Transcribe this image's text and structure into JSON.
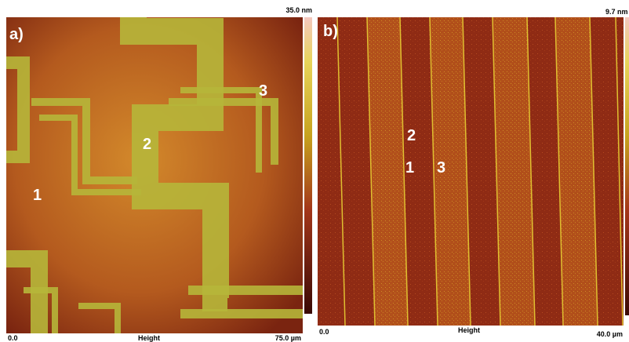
{
  "panels": [
    {
      "label": "a)",
      "scale_max": "35.0 nm",
      "axis_start": "0.0",
      "axis_title": "Height",
      "axis_end": "75.0 µm",
      "markers": [
        "1",
        "2",
        "3"
      ]
    },
    {
      "label": "b)",
      "scale_max": "9.7 nm",
      "axis_start": "0.0",
      "axis_title": "Height",
      "axis_end": "40.0 µm",
      "markers": [
        "2",
        "1",
        "3"
      ]
    }
  ]
}
